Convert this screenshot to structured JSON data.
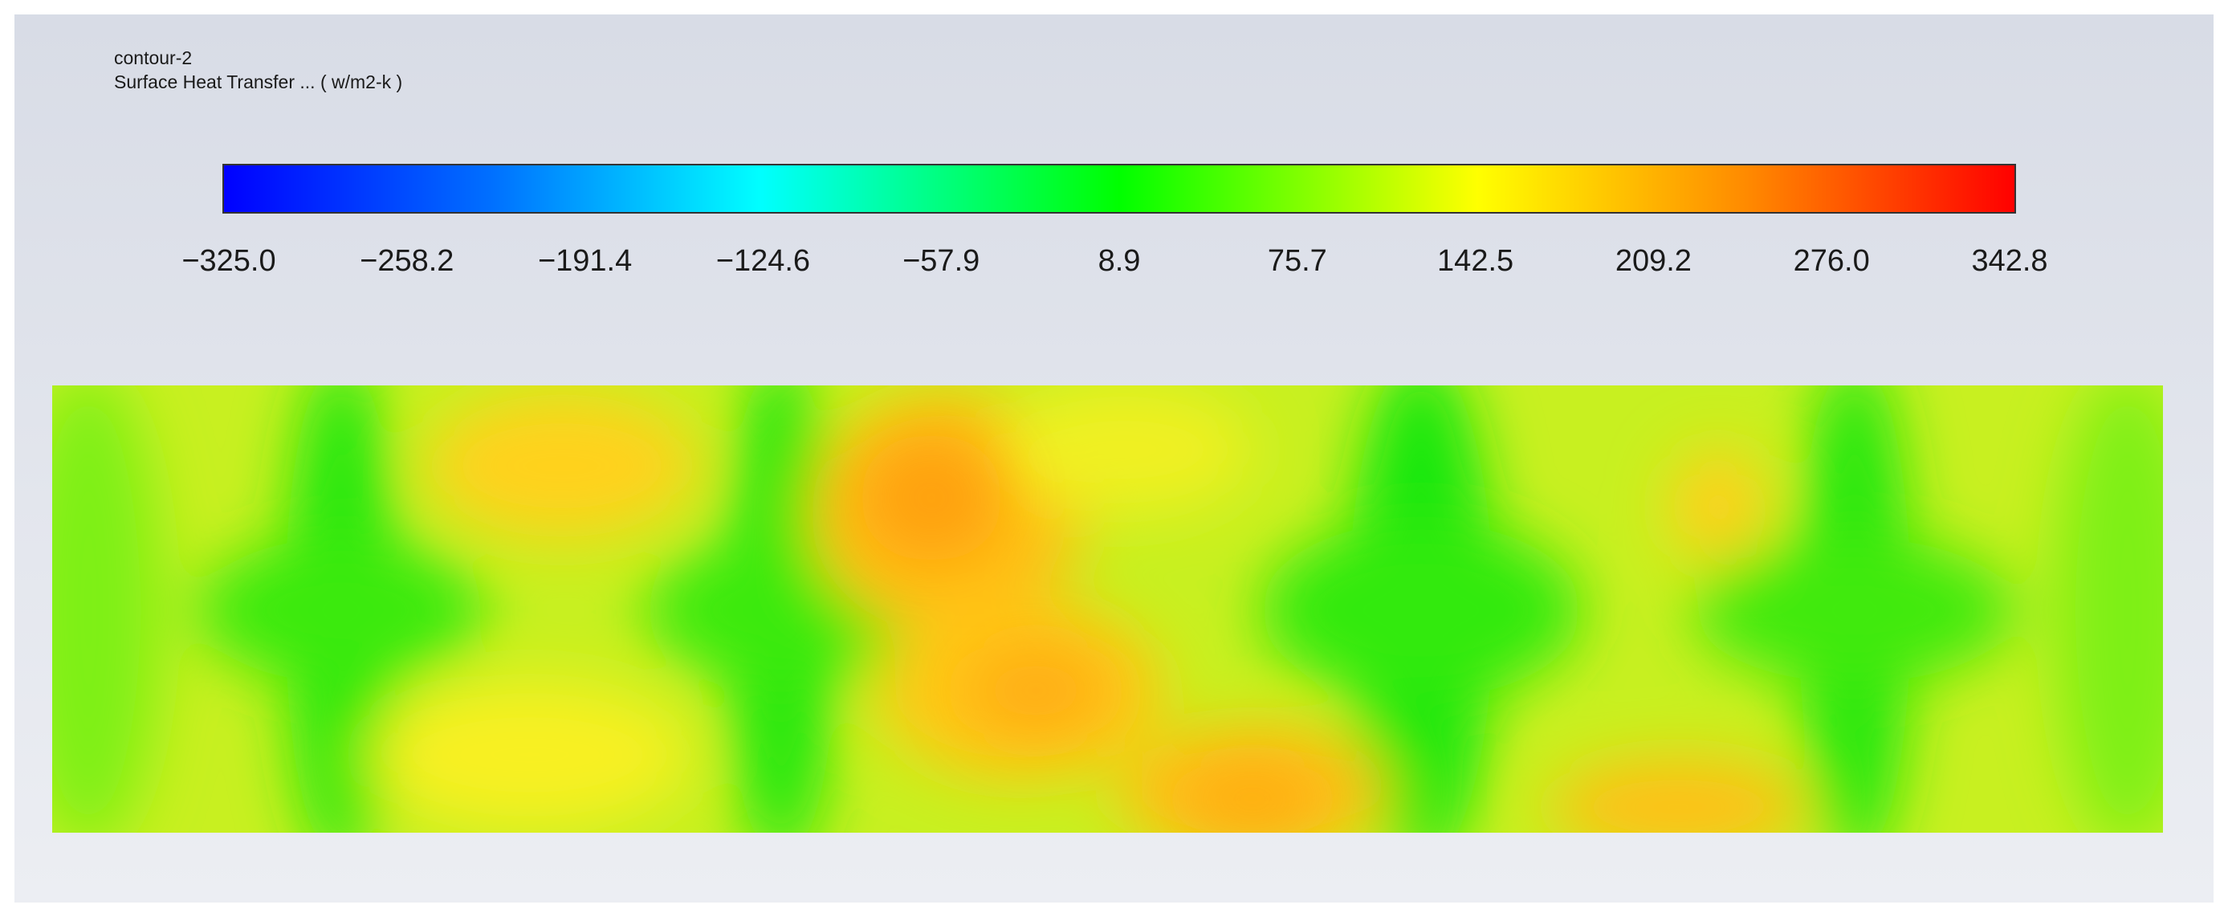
{
  "legend": {
    "title": "contour-2",
    "subtitle": "Surface Heat Transfer ... ( w/m2-k )",
    "colorbar": {
      "labels": [
        "−325.0",
        "−258.2",
        "−191.4",
        "−124.6",
        "−57.9",
        "8.9",
        "75.7",
        "142.5",
        "209.2",
        "276.0",
        "342.8"
      ]
    }
  }
}
